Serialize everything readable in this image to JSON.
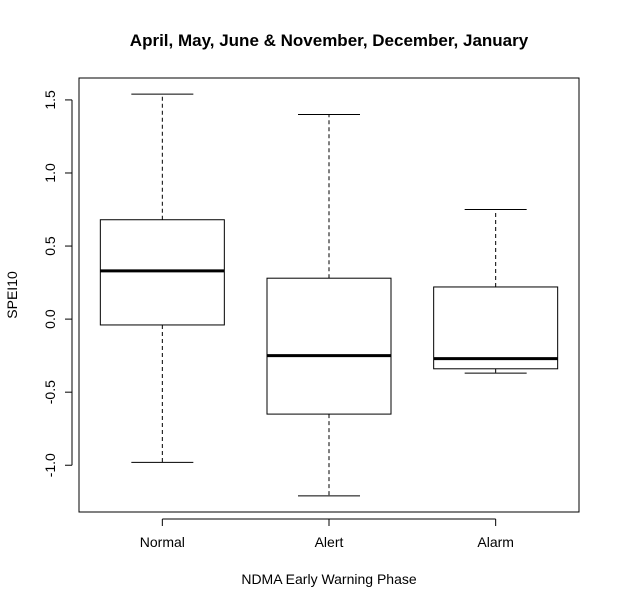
{
  "chart_data": {
    "type": "boxplot",
    "title": "April, May, June & November, December, January",
    "xlabel": "NDMA Early Warning Phase",
    "ylabel": "SPEI10",
    "ylim": [
      -1.32,
      1.65
    ],
    "y_ticks": [
      -1.0,
      -0.5,
      0.0,
      0.5,
      1.0,
      1.5
    ],
    "y_tick_labels": [
      "-1.0",
      "-0.5",
      "0.0",
      "0.5",
      "1.0",
      "1.5"
    ],
    "categories": [
      "Normal",
      "Alert",
      "Alarm"
    ],
    "boxes": [
      {
        "category": "Normal",
        "whisker_low": -0.98,
        "q1": -0.04,
        "median": 0.33,
        "q3": 0.68,
        "whisker_high": 1.54
      },
      {
        "category": "Alert",
        "whisker_low": -1.21,
        "q1": -0.65,
        "median": -0.25,
        "q3": 0.28,
        "whisker_high": 1.4
      },
      {
        "category": "Alarm",
        "whisker_low": -0.37,
        "q1": -0.34,
        "median": -0.27,
        "q3": 0.22,
        "whisker_high": 0.75
      }
    ],
    "grid": false,
    "legend": "none"
  }
}
